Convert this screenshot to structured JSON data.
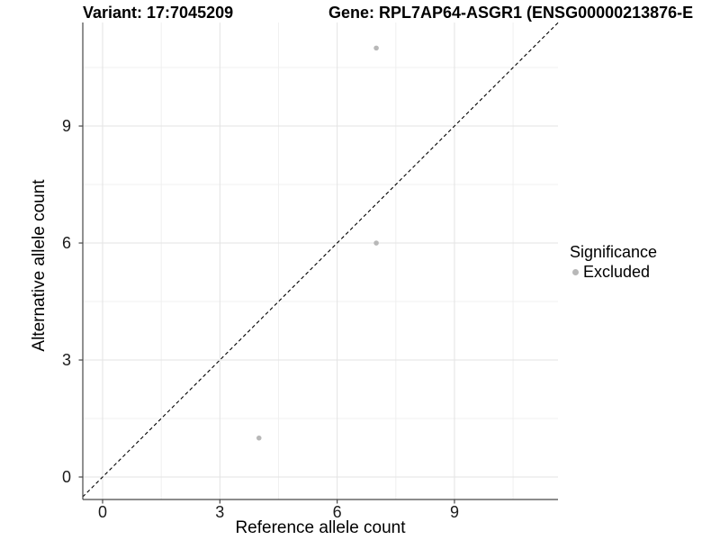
{
  "titles": {
    "variant": "Variant: 17:7045209",
    "gene": "Gene: RPL7AP64-ASGR1 (ENSG00000213876-E"
  },
  "chart_data": {
    "type": "scatter",
    "xlabel": "Reference allele count",
    "ylabel": "Alternative allele count",
    "x_ticks": [
      0,
      3,
      6,
      9
    ],
    "y_ticks": [
      0,
      3,
      6,
      9
    ],
    "x_minor_gridlines": [
      1.5,
      4.5,
      7.5,
      10.5
    ],
    "y_minor_gridlines": [
      1.5,
      4.5,
      7.5,
      10.5
    ],
    "xlim": [
      -0.51,
      11.65
    ],
    "ylim": [
      -0.58,
      11.66
    ],
    "grid": "major+minor",
    "identity_line": {
      "equation": "y = x",
      "style": "dashed",
      "color": "#000000"
    },
    "series": [
      {
        "name": "Excluded",
        "color": "#b8b8b8",
        "points": [
          {
            "x": 7,
            "y": 11
          },
          {
            "x": 7,
            "y": 6
          },
          {
            "x": 4,
            "y": 1
          }
        ]
      }
    ],
    "legend": {
      "position": "right",
      "title": "Significance",
      "items": [
        {
          "label": "Excluded",
          "color": "#b8b8b8"
        }
      ]
    }
  },
  "colors": {
    "background": "#ffffff",
    "axis_line": "#474747",
    "tick_mark": "#474747",
    "tick_label": "#1a1a1a",
    "grid_major": "#e3e3e3",
    "grid_minor": "#f0f0f0",
    "point": "#b8b8b8",
    "dashed_line": "#000000"
  }
}
